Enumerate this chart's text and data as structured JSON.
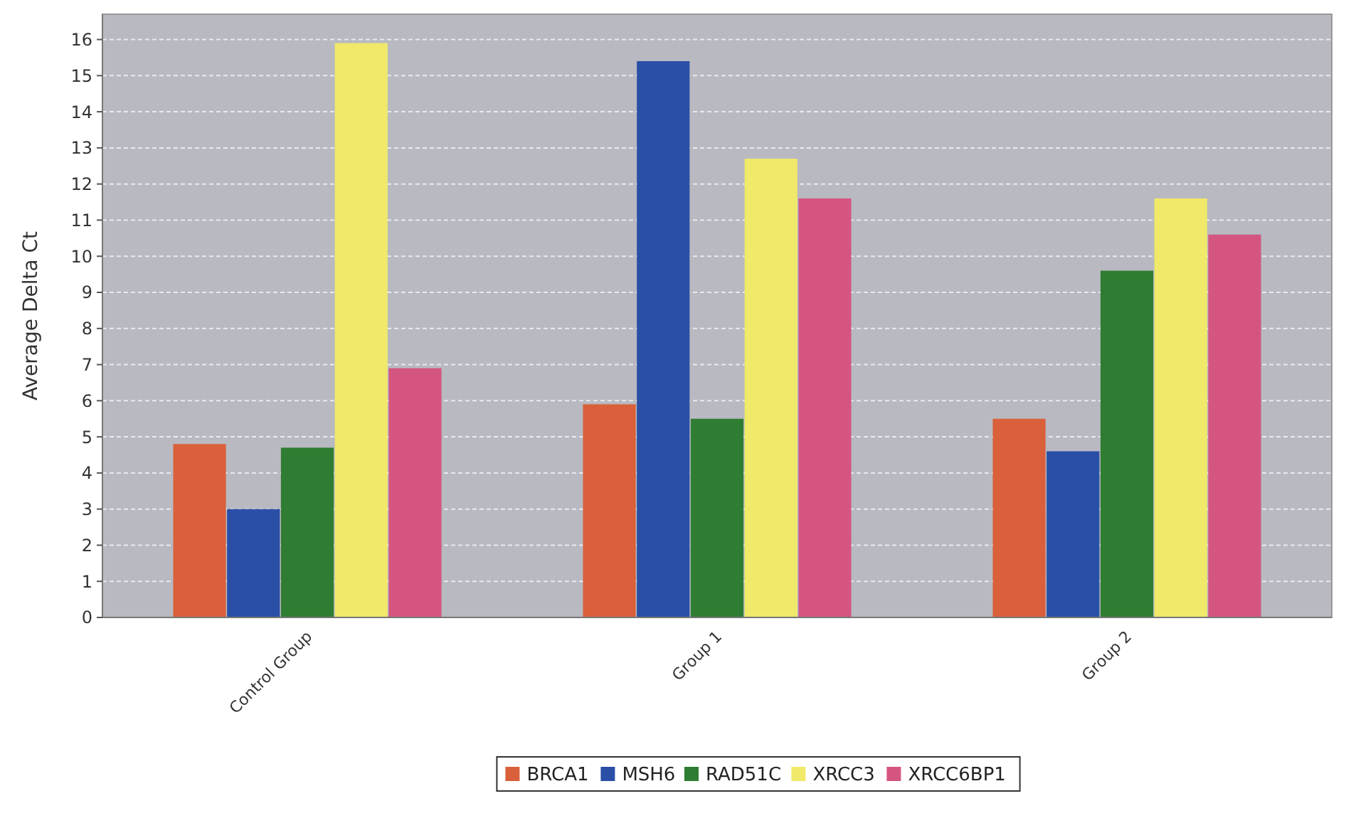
{
  "chart_data": {
    "type": "bar",
    "ylabel": "Average Delta Ct",
    "categories": [
      "Control Group",
      "Group 1",
      "Group 2"
    ],
    "series": [
      {
        "name": "BRCA1",
        "color": "#d9603b",
        "values": [
          4.8,
          5.9,
          5.5
        ]
      },
      {
        "name": "MSH6",
        "color": "#2a4fa6",
        "values": [
          3.0,
          15.4,
          4.6
        ]
      },
      {
        "name": "RAD51C",
        "color": "#2f7d32",
        "values": [
          4.7,
          5.5,
          9.6
        ]
      },
      {
        "name": "XRCC3",
        "color": "#f0e96a",
        "values": [
          15.9,
          12.7,
          11.6
        ]
      },
      {
        "name": "XRCC6BP1",
        "color": "#d45580",
        "values": [
          6.9,
          11.6,
          10.6
        ]
      }
    ],
    "ylim": [
      0,
      16.7
    ],
    "yticks": [
      0,
      1,
      2,
      3,
      4,
      5,
      6,
      7,
      8,
      9,
      10,
      11,
      12,
      13,
      14,
      15,
      16
    ],
    "grid": "y",
    "legend": "bottom"
  }
}
